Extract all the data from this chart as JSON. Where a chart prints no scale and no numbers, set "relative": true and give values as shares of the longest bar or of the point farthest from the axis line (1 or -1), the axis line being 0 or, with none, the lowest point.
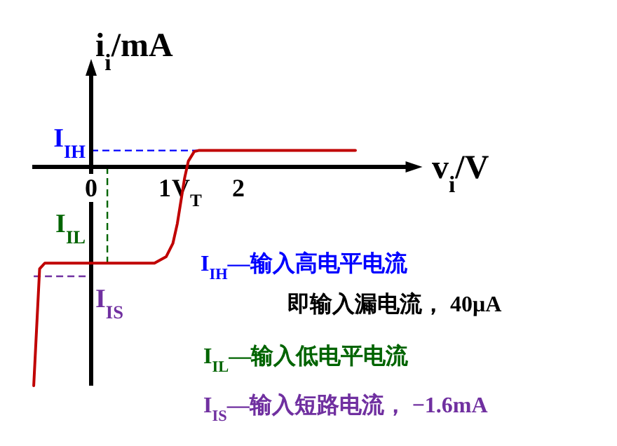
{
  "chart_data": {
    "type": "line",
    "relative": true,
    "xlabel": "v$_{i}$/V",
    "ylabel": "i$_{i}$/mA",
    "xlim": [
      -0.8,
      4.5
    ],
    "xticks": [
      0,
      1,
      {
        "value": 1.3,
        "label": "V$_{T}$"
      },
      2
    ],
    "line_style": "solid",
    "series": [
      {
        "color": "#c00000",
        "x": [
          -0.78,
          -0.7,
          -0.63,
          0.86,
          1.02,
          1.11,
          1.17,
          1.27,
          1.32,
          1.4,
          1.46,
          3.59
        ],
        "values": [
          -1,
          -0.466,
          -0.44,
          -0.44,
          -0.41,
          -0.35,
          -0.26,
          -0.05,
          0.026,
          0.07,
          0.075,
          0.075
        ]
      }
    ],
    "ref_lines": [
      {
        "axis": "y",
        "value": 0.075,
        "label": "I$_{IH}$",
        "color": "#0000ff",
        "line_style": "dashed"
      },
      {
        "axis": "y",
        "value": -0.5,
        "label": "I$_{IS}$",
        "color": "#7030a0",
        "line_style": "dashed"
      },
      {
        "axis": "x",
        "value": 0.22,
        "label": "I$_{IL}$",
        "color": "#006400",
        "line_style": "dashed"
      }
    ],
    "annotations": [
      "I$_{IH}$—输入高电平电流",
      "即输入漏电流， 40μA",
      "I$_{IL}$—输入低电平电流",
      "I$_{IS}$—输入短路电流， −1.6mA"
    ]
  }
}
